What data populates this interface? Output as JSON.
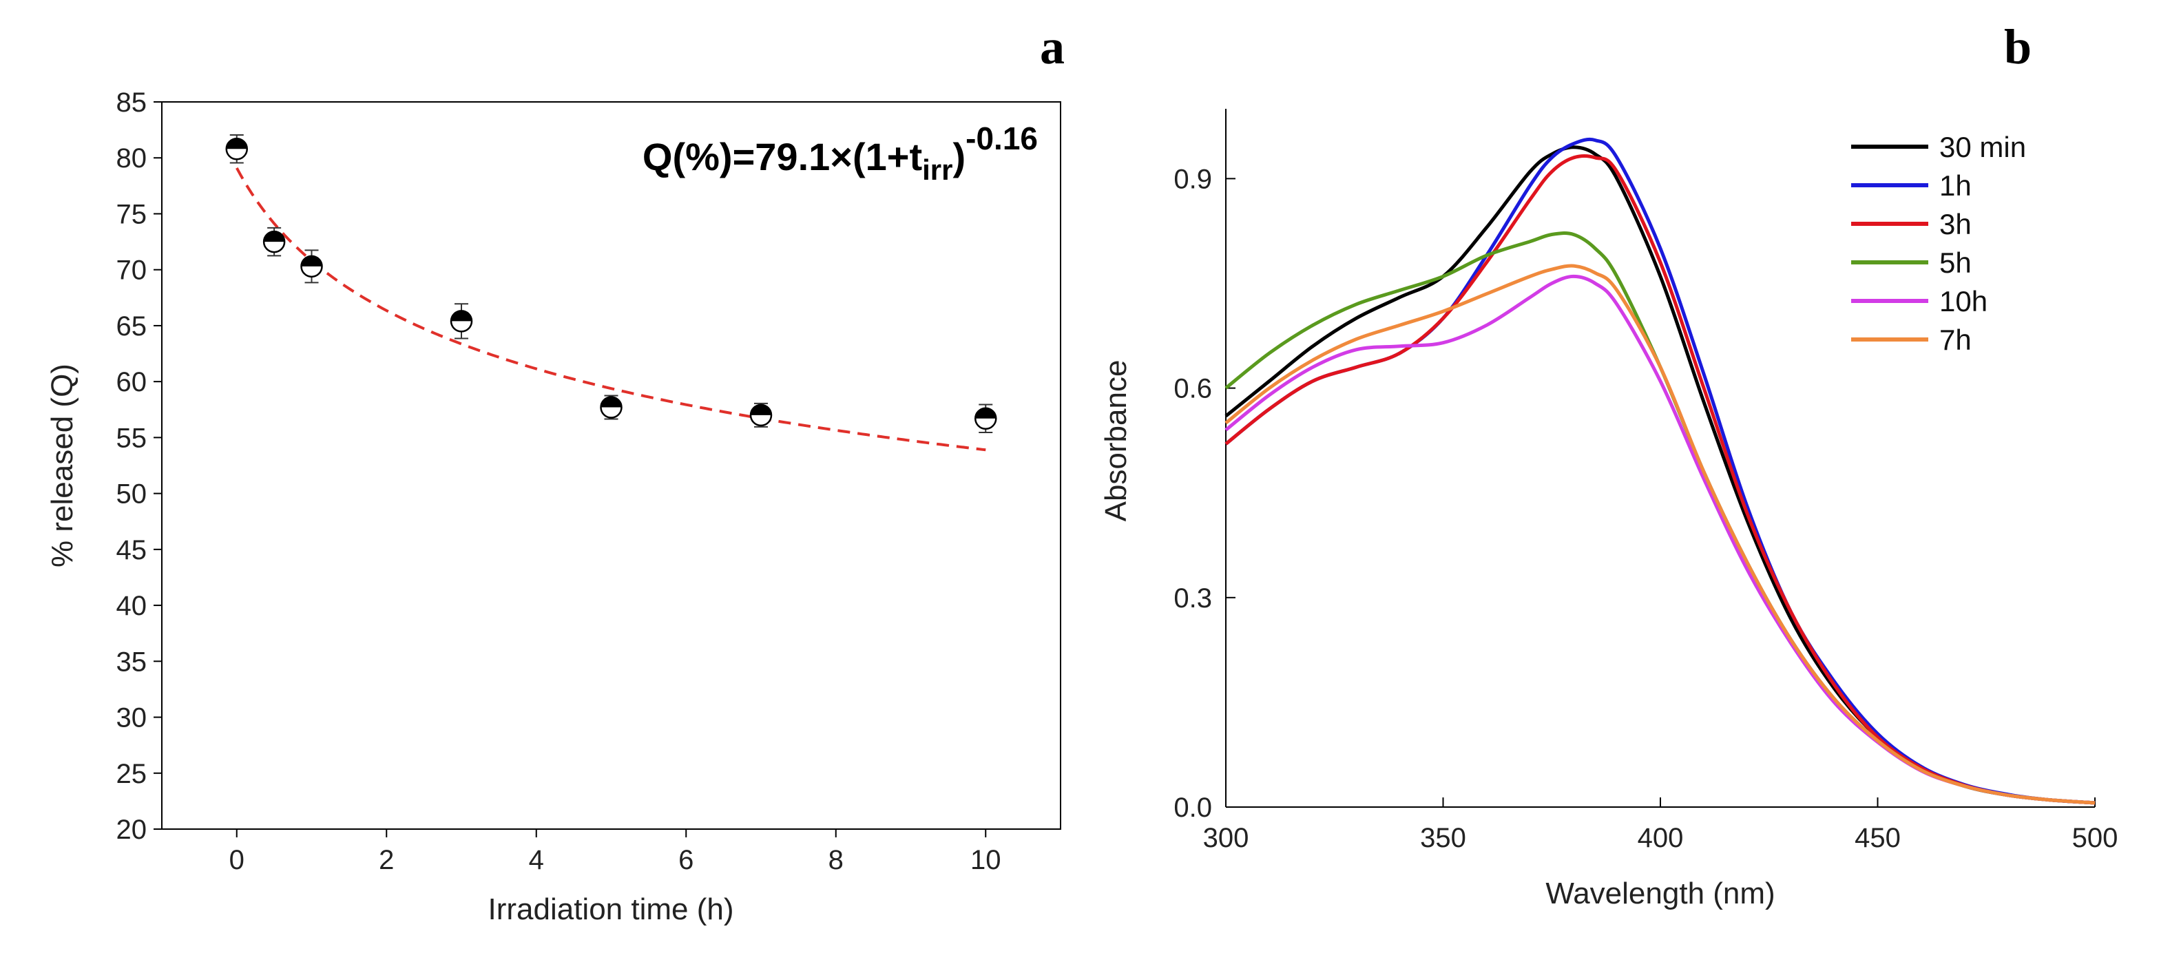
{
  "panel_a_letter": "a",
  "panel_b_letter": "b",
  "chart_data": [
    {
      "type": "scatter",
      "panel": "a",
      "xlabel": "Irradiation time (h)",
      "ylabel": "% released (Q)",
      "xlim": [
        -1,
        11
      ],
      "ylim": [
        20,
        85
      ],
      "xticks": [
        0,
        2,
        4,
        6,
        8,
        10
      ],
      "yticks": [
        20,
        25,
        30,
        35,
        40,
        45,
        50,
        55,
        60,
        65,
        70,
        75,
        80,
        85
      ],
      "points": [
        {
          "x": 0,
          "y": 80.8,
          "err": 1.0
        },
        {
          "x": 0.5,
          "y": 72.5,
          "err": 1.0
        },
        {
          "x": 1,
          "y": 70.3,
          "err": 1.2
        },
        {
          "x": 3,
          "y": 65.4,
          "err": 1.3
        },
        {
          "x": 5,
          "y": 57.7,
          "err": 0.8
        },
        {
          "x": 7,
          "y": 57.0,
          "err": 0.8
        },
        {
          "x": 10,
          "y": 56.7,
          "err": 1.0
        }
      ],
      "fit": {
        "a": 79.1,
        "b": -0.16,
        "color": "#e0302a",
        "style": "dashed"
      },
      "annotation": {
        "prefix": "Q(%)=79.1×(1+t",
        "subscript": "irr",
        "suffix": ")",
        "superscript": "-0.16"
      }
    },
    {
      "type": "line",
      "panel": "b",
      "xlabel": "Wavelength (nm)",
      "ylabel": "Absorbance",
      "xlim": [
        300,
        500
      ],
      "ylim": [
        0,
        1.0
      ],
      "xticks": [
        300,
        350,
        400,
        450,
        500
      ],
      "yticks": [
        0.0,
        0.3,
        0.6,
        0.9
      ],
      "ytick_labels": [
        "0.0",
        "0.3",
        "0.6",
        "0.9"
      ],
      "x": [
        300,
        310,
        320,
        330,
        340,
        350,
        360,
        370,
        375,
        380,
        385,
        390,
        400,
        410,
        420,
        430,
        440,
        450,
        460,
        470,
        480,
        490,
        500
      ],
      "series": [
        {
          "name": "30 min",
          "color": "#000000",
          "values": [
            0.56,
            0.61,
            0.66,
            0.7,
            0.73,
            0.76,
            0.83,
            0.91,
            0.935,
            0.945,
            0.935,
            0.9,
            0.76,
            0.58,
            0.41,
            0.27,
            0.17,
            0.1,
            0.055,
            0.03,
            0.017,
            0.01,
            0.006
          ]
        },
        {
          "name": "1h",
          "color": "#1a1adc",
          "values": [
            0.52,
            0.57,
            0.61,
            0.63,
            0.65,
            0.7,
            0.79,
            0.89,
            0.93,
            0.95,
            0.955,
            0.93,
            0.8,
            0.62,
            0.43,
            0.28,
            0.18,
            0.105,
            0.058,
            0.032,
            0.018,
            0.01,
            0.006
          ]
        },
        {
          "name": "3h",
          "color": "#e0141e",
          "values": [
            0.52,
            0.57,
            0.61,
            0.63,
            0.65,
            0.7,
            0.78,
            0.87,
            0.91,
            0.93,
            0.93,
            0.91,
            0.78,
            0.6,
            0.42,
            0.28,
            0.175,
            0.1,
            0.056,
            0.031,
            0.017,
            0.01,
            0.006
          ]
        },
        {
          "name": "5h",
          "color": "#5a9a1e",
          "values": [
            0.6,
            0.65,
            0.69,
            0.72,
            0.74,
            0.76,
            0.79,
            0.81,
            0.82,
            0.82,
            0.8,
            0.76,
            0.63,
            0.48,
            0.35,
            0.24,
            0.155,
            0.095,
            0.053,
            0.03,
            0.017,
            0.01,
            0.006
          ]
        },
        {
          "name": "10h",
          "color": "#d23ce6",
          "values": [
            0.54,
            0.59,
            0.63,
            0.655,
            0.66,
            0.665,
            0.69,
            0.73,
            0.75,
            0.76,
            0.75,
            0.72,
            0.61,
            0.47,
            0.34,
            0.235,
            0.15,
            0.093,
            0.052,
            0.03,
            0.017,
            0.01,
            0.006
          ]
        },
        {
          "name": "7h",
          "color": "#f08a3c",
          "values": [
            0.55,
            0.6,
            0.64,
            0.67,
            0.69,
            0.71,
            0.735,
            0.76,
            0.77,
            0.775,
            0.765,
            0.74,
            0.63,
            0.48,
            0.35,
            0.24,
            0.155,
            0.095,
            0.053,
            0.03,
            0.017,
            0.01,
            0.006
          ]
        }
      ]
    }
  ]
}
